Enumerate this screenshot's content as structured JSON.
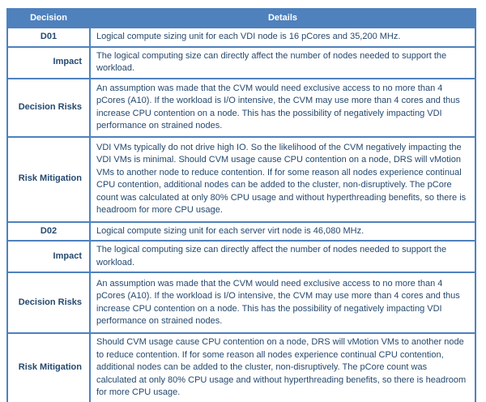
{
  "colors": {
    "accent": "#4F81BD",
    "body_text": "#24496F",
    "header_text": "#FFFFFF"
  },
  "table": {
    "header": {
      "decision": "Decision",
      "details": "Details"
    },
    "rows": [
      {
        "label": "D01",
        "details": "Logical compute sizing unit for each VDI node is 16 pCores and 35,200 MHz."
      },
      {
        "label": "Impact",
        "details": "The logical computing size can directly affect the number of nodes needed to support the workload."
      },
      {
        "label": "Decision Risks",
        "details": "An assumption was made that the CVM would need exclusive access to no more than 4 pCores (A10). If the workload is I/O intensive, the CVM may use more than 4 cores and thus increase CPU contention on a node. This has the possibility of negatively impacting VDI performance on strained nodes."
      },
      {
        "label": "Risk Mitigation",
        "details": "VDI VMs typically do not drive high IO. So the likelihood of the CVM negatively impacting the VDI VMs is minimal. Should CVM usage cause CPU contention on a node, DRS will vMotion VMs to another node to reduce contention. If for some reason all nodes experience continual CPU contention, additional nodes can be added to the cluster, non-disruptively. The pCore count was calculated at only 80% CPU usage and without hyperthreading benefits, so there is headroom for more CPU usage."
      },
      {
        "label": "D02",
        "details": "Logical compute sizing unit for each server virt node is 46,080 MHz."
      },
      {
        "label": "Impact",
        "details": "The logical computing size can directly affect the number of nodes needed to support the workload."
      },
      {
        "label": "Decision Risks",
        "details": "An assumption was made that the CVM would need exclusive access to no more than 4 pCores (A10). If the workload is I/O intensive, the CVM may use more than 4 cores and thus increase CPU contention on a node. This has the possibility of negatively impacting VDI performance on strained nodes."
      },
      {
        "label": "Risk Mitigation",
        "details": "Should CVM usage cause CPU contention on a node, DRS will vMotion VMs to another node to reduce contention. If for some reason all nodes experience continual CPU contention, additional nodes can be added to the cluster, non-disruptively. The pCore count was calculated at only 80% CPU usage and without hyperthreading benefits, so there is headroom for more CPU usage."
      }
    ]
  }
}
